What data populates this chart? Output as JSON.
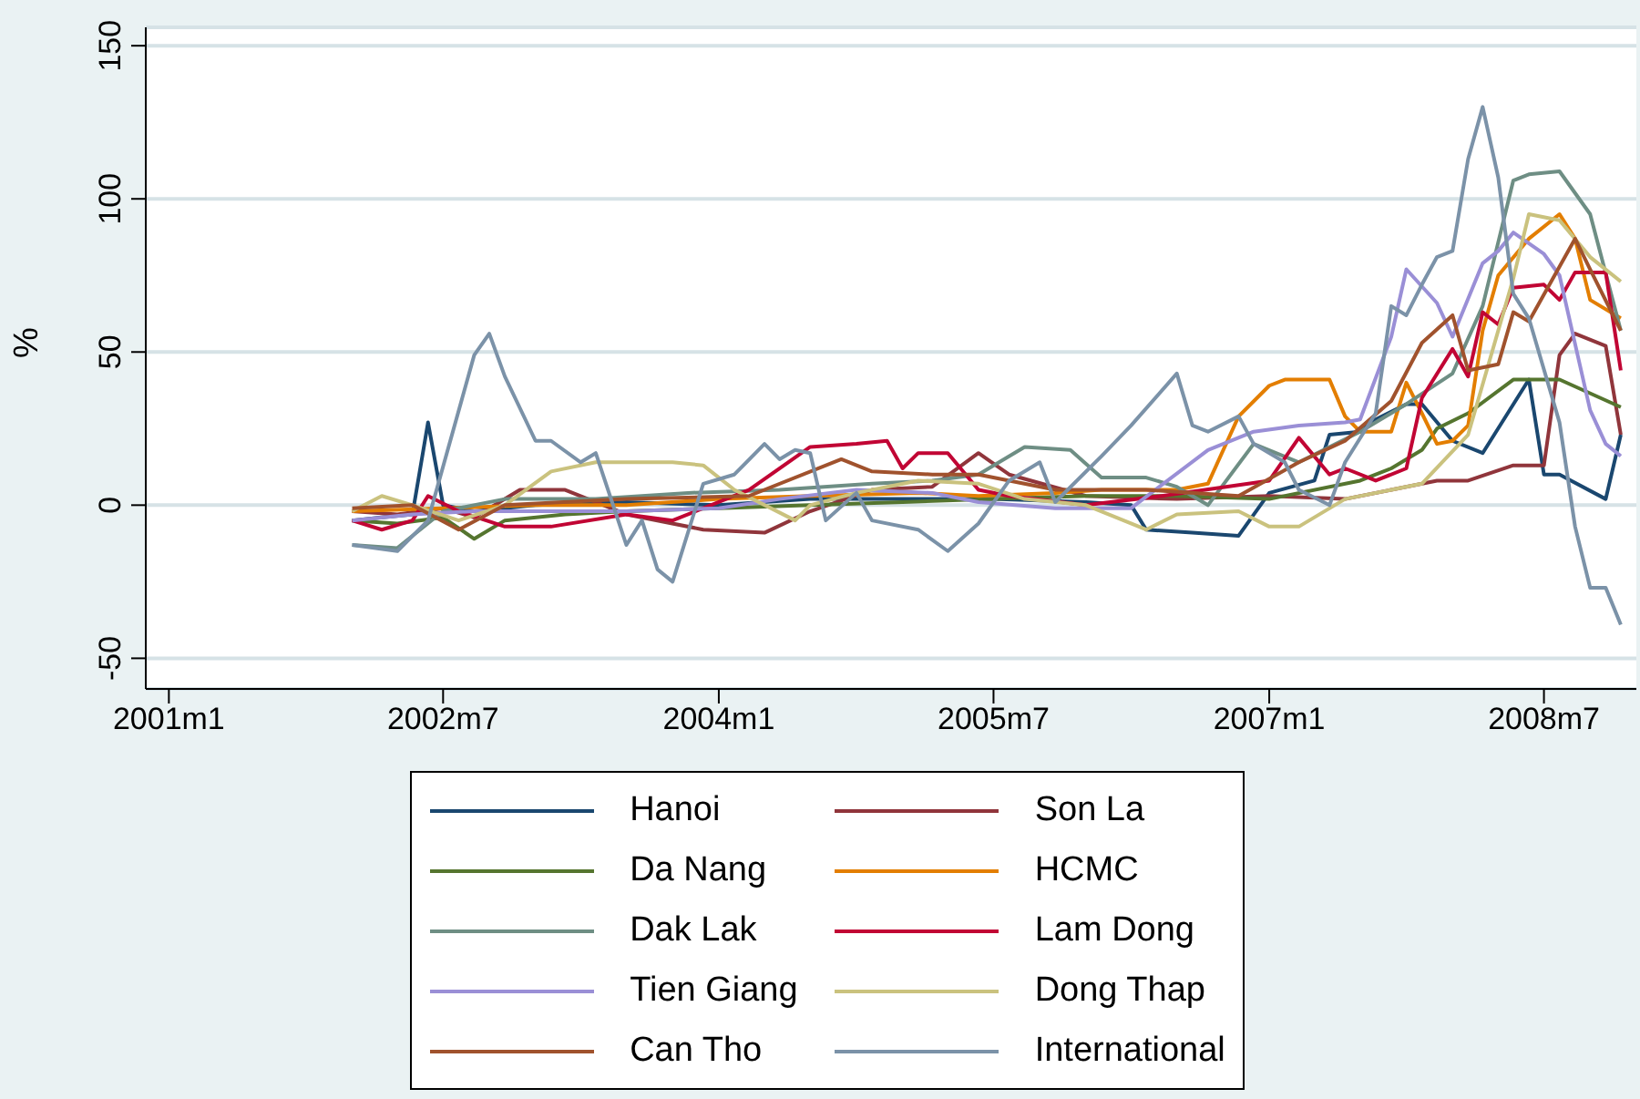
{
  "chart_data": {
    "type": "line",
    "ylabel": "%",
    "xlim": [
      "2000-11-16",
      "2009-01-01"
    ],
    "xticks": [
      {
        "value": "2001-01",
        "label": "2001m1"
      },
      {
        "value": "2002-07",
        "label": "2002m7"
      },
      {
        "value": "2004-01",
        "label": "2004m1"
      },
      {
        "value": "2005-07",
        "label": "2005m7"
      },
      {
        "value": "2007-01",
        "label": "2007m1"
      },
      {
        "value": "2008-07",
        "label": "2008m7"
      }
    ],
    "ylim": [
      -60,
      156
    ],
    "yticks": [
      -50,
      0,
      50,
      100,
      150
    ],
    "grid": "y",
    "legend": "bottom",
    "marker": "none",
    "line_style": "solid",
    "series": [
      {
        "name": "Hanoi",
        "color": "#1a476f",
        "x": [
          "2002-01",
          "2002-03",
          "2002-05",
          "2002-06",
          "2002-07",
          "2002-09",
          "2003-01",
          "2003-07",
          "2004-01",
          "2004-07",
          "2005-01",
          "2005-07",
          "2006-01",
          "2006-04",
          "2006-05",
          "2006-08",
          "2006-11",
          "2007-01",
          "2007-04",
          "2007-05",
          "2007-07",
          "2007-08",
          "2007-10",
          "2007-11",
          "2008-01",
          "2008-03",
          "2008-06",
          "2008-07",
          "2008-08",
          "2008-11",
          "2008-12"
        ],
        "values": [
          -5,
          -4,
          -3,
          27,
          0,
          -2,
          0,
          1,
          0,
          2,
          2,
          2,
          1,
          0,
          -8,
          -9,
          -10,
          4,
          8,
          23,
          24,
          28,
          33,
          33,
          21,
          17,
          41,
          10,
          10,
          2,
          23
        ]
      },
      {
        "name": "Son La",
        "color": "#90353b",
        "x": [
          "2002-01",
          "2002-04",
          "2002-07",
          "2002-09",
          "2002-12",
          "2003-03",
          "2003-07",
          "2003-12",
          "2004-04",
          "2004-07",
          "2004-11",
          "2005-03",
          "2005-06",
          "2005-08",
          "2006-01",
          "2006-07",
          "2007-01",
          "2007-06",
          "2007-09",
          "2007-12",
          "2008-02",
          "2008-05",
          "2008-07",
          "2008-08",
          "2008-09",
          "2008-11",
          "2008-12"
        ],
        "values": [
          -2,
          -3,
          -1,
          -4,
          5,
          5,
          -3,
          -8,
          -9,
          -2,
          5,
          6,
          17,
          10,
          3,
          2,
          3,
          2,
          5,
          8,
          8,
          13,
          13,
          49,
          56,
          52,
          23
        ]
      },
      {
        "name": "Da Nang",
        "color": "#55752f",
        "x": [
          "2002-01",
          "2002-04",
          "2002-07",
          "2002-09",
          "2002-11",
          "2003-03",
          "2003-07",
          "2004-01",
          "2004-07",
          "2005-01",
          "2005-07",
          "2006-01",
          "2006-07",
          "2007-01",
          "2007-07",
          "2007-09",
          "2007-11",
          "2007-12",
          "2008-02",
          "2008-05",
          "2008-08",
          "2008-12"
        ],
        "values": [
          -5,
          -6,
          -4,
          -11,
          -5,
          -3,
          -2,
          -1,
          0,
          1,
          2,
          3,
          3,
          2,
          8,
          12,
          18,
          25,
          30,
          41,
          41,
          32
        ]
      },
      {
        "name": "HCMC",
        "color": "#e37e00",
        "x": [
          "2002-01",
          "2002-07",
          "2003-01",
          "2003-07",
          "2004-01",
          "2004-07",
          "2005-02",
          "2005-06",
          "2005-11",
          "2006-02",
          "2006-07",
          "2006-09",
          "2006-11",
          "2007-01",
          "2007-02",
          "2007-05",
          "2007-06",
          "2007-07",
          "2007-09",
          "2007-10",
          "2007-11",
          "2007-12",
          "2008-01",
          "2008-02",
          "2008-03",
          "2008-04",
          "2008-06",
          "2008-08",
          "2008-09",
          "2008-10",
          "2008-12"
        ],
        "values": [
          -2,
          -1,
          0,
          0,
          2,
          3,
          4,
          3,
          4,
          5,
          5,
          7,
          29,
          39,
          41,
          41,
          29,
          24,
          24,
          40,
          30,
          20,
          21,
          26,
          57,
          75,
          87,
          95,
          87,
          67,
          61
        ]
      },
      {
        "name": "Dak Lak",
        "color": "#6e8e84",
        "x": [
          "2002-01",
          "2002-04",
          "2002-05",
          "2002-07",
          "2002-11",
          "2003-05",
          "2003-11",
          "2004-05",
          "2004-11",
          "2005-03",
          "2005-06",
          "2005-09",
          "2005-12",
          "2006-02",
          "2006-05",
          "2006-07",
          "2006-09",
          "2006-12",
          "2007-03",
          "2007-07",
          "2007-10",
          "2008-01",
          "2008-03",
          "2008-05",
          "2008-06",
          "2008-08",
          "2008-10",
          "2008-12"
        ],
        "values": [
          -13,
          -14,
          -10,
          -2,
          2,
          2,
          4,
          5,
          7,
          8,
          10,
          19,
          18,
          9,
          9,
          6,
          0,
          20,
          14,
          24,
          33,
          43,
          65,
          106,
          108,
          109,
          95,
          57
        ]
      },
      {
        "name": "Lam Dong",
        "color": "#c10534",
        "x": [
          "2002-01",
          "2002-03",
          "2002-05",
          "2002-06",
          "2002-08",
          "2002-11",
          "2003-02",
          "2003-07",
          "2003-10",
          "2004-03",
          "2004-07",
          "2004-10",
          "2004-12",
          "2005-01",
          "2005-02",
          "2005-04",
          "2005-06",
          "2005-08",
          "2006-01",
          "2006-06",
          "2007-01",
          "2007-03",
          "2007-05",
          "2007-06",
          "2007-08",
          "2007-10",
          "2007-11",
          "2008-01",
          "2008-02",
          "2008-03",
          "2008-04",
          "2008-05",
          "2008-07",
          "2008-08",
          "2008-09",
          "2008-11",
          "2008-12"
        ],
        "values": [
          -5,
          -8,
          -5,
          3,
          -2,
          -7,
          -7,
          -3,
          -5,
          5,
          19,
          20,
          21,
          12,
          17,
          17,
          5,
          3,
          0,
          3,
          8,
          22,
          10,
          12,
          8,
          12,
          35,
          51,
          42,
          63,
          59,
          71,
          72,
          67,
          76,
          76,
          44
        ]
      },
      {
        "name": "Tien Giang",
        "color": "#9a8fd6",
        "x": [
          "2002-01",
          "2002-05",
          "2002-09",
          "2003-01",
          "2003-07",
          "2004-01",
          "2004-05",
          "2004-10",
          "2005-03",
          "2005-06",
          "2005-11",
          "2006-04",
          "2006-09",
          "2006-12",
          "2007-03",
          "2007-06",
          "2007-07",
          "2007-09",
          "2007-10",
          "2007-12",
          "2008-01",
          "2008-03",
          "2008-04",
          "2008-05",
          "2008-07",
          "2008-08",
          "2008-10",
          "2008-11",
          "2008-12"
        ],
        "values": [
          -5,
          -3,
          -2,
          -2,
          -2,
          -1,
          2,
          5,
          4,
          1,
          -1,
          -1,
          18,
          24,
          26,
          27,
          28,
          55,
          77,
          66,
          55,
          79,
          83,
          89,
          82,
          75,
          31,
          20,
          16
        ]
      },
      {
        "name": "Dong Thap",
        "color": "#cac27e",
        "x": [
          "2002-01",
          "2002-03",
          "2002-05",
          "2002-08",
          "2002-11",
          "2003-02",
          "2003-05",
          "2003-10",
          "2003-12",
          "2004-02",
          "2004-06",
          "2004-07",
          "2004-10",
          "2005-02",
          "2005-06",
          "2005-09",
          "2006-01",
          "2006-05",
          "2006-07",
          "2006-11",
          "2007-01",
          "2007-03",
          "2007-06",
          "2007-11",
          "2008-02",
          "2008-05",
          "2008-06",
          "2008-08",
          "2008-10",
          "2008-12"
        ],
        "values": [
          -2,
          3,
          0,
          -5,
          0,
          11,
          14,
          14,
          13,
          5,
          -5,
          0,
          4,
          8,
          7,
          2,
          0,
          -8,
          -3,
          -2,
          -7,
          -7,
          2,
          7,
          23,
          74,
          95,
          93,
          81,
          73
        ]
      },
      {
        "name": "Can Tho",
        "color": "#a0522d",
        "x": [
          "2002-01",
          "2002-05",
          "2002-08",
          "2002-11",
          "2003-07",
          "2004-03",
          "2004-09",
          "2004-11",
          "2005-03",
          "2005-06",
          "2005-11",
          "2006-05",
          "2006-11",
          "2007-03",
          "2007-06",
          "2007-09",
          "2007-11",
          "2008-01",
          "2008-02",
          "2008-04",
          "2008-05",
          "2008-06",
          "2008-09",
          "2008-10",
          "2008-12"
        ],
        "values": [
          -1,
          0,
          -8,
          0,
          2,
          3,
          15,
          11,
          10,
          10,
          5,
          5,
          3,
          14,
          21,
          34,
          53,
          62,
          44,
          46,
          63,
          60,
          87,
          77,
          57
        ]
      },
      {
        "name": "International",
        "color": "#7b92a8",
        "x": [
          "2002-01",
          "2002-04",
          "2002-06",
          "2002-09",
          "2002-10",
          "2002-11",
          "2003-01",
          "2003-02",
          "2003-04",
          "2003-05",
          "2003-07",
          "2003-08",
          "2003-09",
          "2003-10",
          "2003-12",
          "2004-02",
          "2004-04",
          "2004-05",
          "2004-06",
          "2004-07",
          "2004-08",
          "2004-10",
          "2004-11",
          "2005-02",
          "2005-04",
          "2005-06",
          "2005-08",
          "2005-10",
          "2005-11",
          "2006-02",
          "2006-04",
          "2006-07",
          "2006-08",
          "2006-09",
          "2006-11",
          "2006-12",
          "2007-02",
          "2007-03",
          "2007-05",
          "2007-06",
          "2007-08",
          "2007-09",
          "2007-10",
          "2007-11",
          "2007-12",
          "2008-01",
          "2008-02",
          "2008-03",
          "2008-04",
          "2008-05",
          "2008-06",
          "2008-08",
          "2008-09",
          "2008-10",
          "2008-11",
          "2008-12"
        ],
        "values": [
          -13,
          -15,
          -5,
          49,
          56,
          42,
          21,
          21,
          14,
          17,
          -13,
          -5,
          -21,
          -25,
          7,
          10,
          20,
          15,
          18,
          17,
          -5,
          4,
          -5,
          -8,
          -15,
          -6,
          8,
          14,
          1,
          16,
          26,
          43,
          26,
          24,
          29,
          20,
          14,
          5,
          0,
          14,
          30,
          65,
          62,
          72,
          81,
          83,
          113,
          130,
          107,
          69,
          61,
          27,
          -7,
          -27,
          -27,
          -39
        ]
      }
    ]
  }
}
